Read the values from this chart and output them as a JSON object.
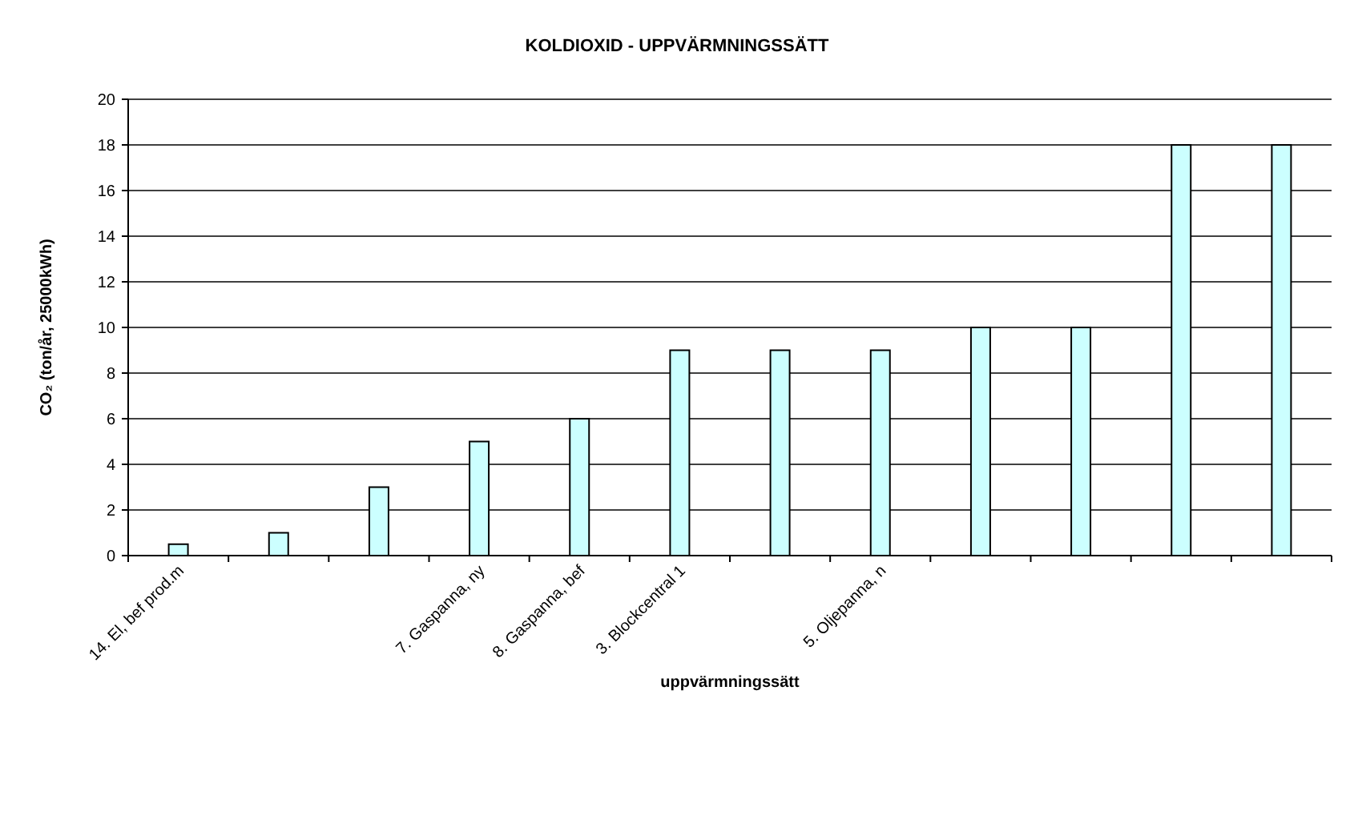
{
  "chart_data": {
    "type": "bar",
    "title": "KOLDIOXID - UPPVÄRMNINGSSÄTT",
    "xlabel": "uppvärmningssätt",
    "ylabel": "CO₂ (ton/år, 25000kWh)",
    "categories": [
      "14. El, bef prod.m",
      null,
      null,
      "7. Gaspanna, ny",
      "8. Gaspanna, bef",
      "3. Blockcentral 1",
      null,
      "5. Oljepanna, n",
      null,
      null,
      null,
      null
    ],
    "values": [
      0.5,
      1,
      3,
      5,
      6,
      9,
      9,
      9,
      10,
      10,
      18,
      18
    ],
    "color": "#ccffff",
    "ylim": [
      0,
      20
    ],
    "yticks": [
      0,
      2,
      4,
      6,
      8,
      10,
      12,
      14,
      16,
      18,
      20
    ],
    "grid": "y"
  }
}
